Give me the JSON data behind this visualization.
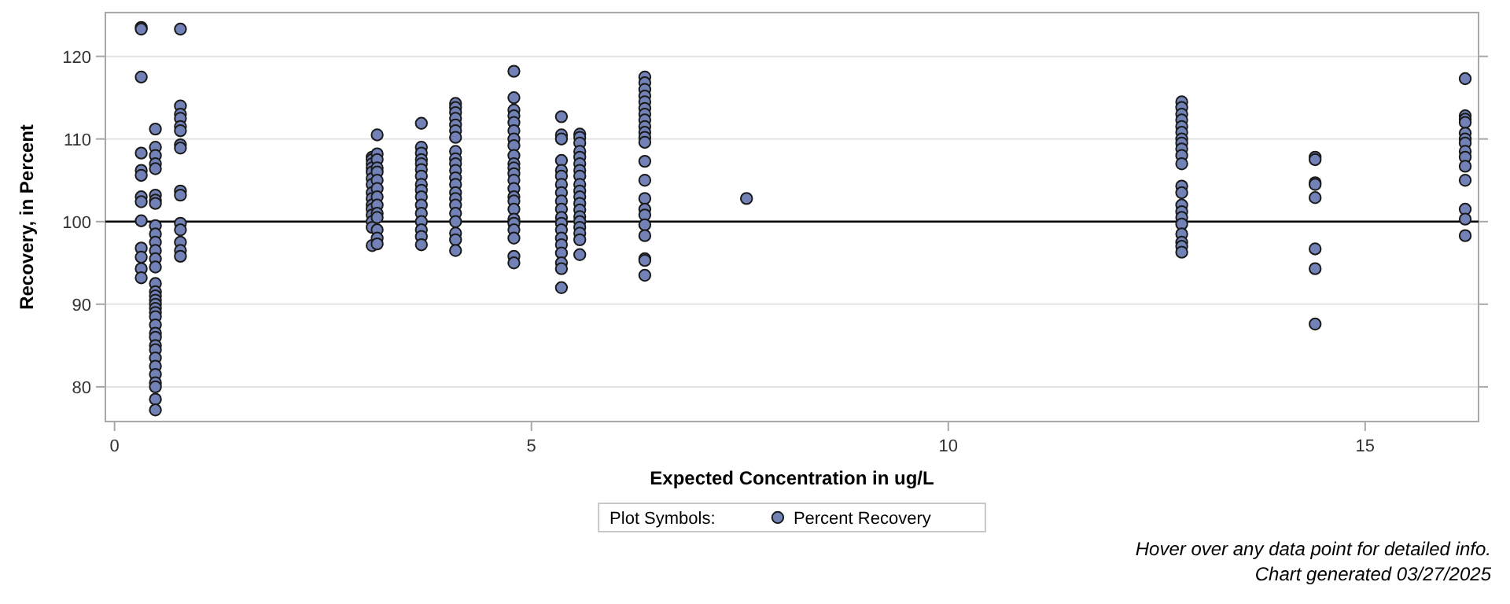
{
  "chart_data": {
    "type": "scatter",
    "xlabel": "Expected Concentration in ug/L",
    "ylabel": "Recovery, in Percent",
    "legend_title": "Plot Symbols:",
    "legend": "bottom",
    "marker": "circle",
    "grid": "y",
    "xlim": [
      -0.11,
      16.36
    ],
    "ylim": [
      75.8,
      125.3
    ],
    "xticks": [
      0,
      5,
      10,
      15
    ],
    "yticks": [
      80,
      90,
      100,
      110,
      120
    ],
    "ref_lines": [
      {
        "axis": "y",
        "value": 100,
        "color": "#000000"
      }
    ],
    "annotations": [
      "Hover over any data point for detailed info.",
      "Chart generated 03/27/2025"
    ],
    "series": [
      {
        "name": "Percent Recovery",
        "color": "#7282b6",
        "x": [
          0.32,
          0.32,
          0.32,
          0.32,
          0.32,
          0.32,
          0.32,
          0.32,
          0.32,
          0.32,
          0.32,
          0.32,
          0.32,
          0.49,
          0.49,
          0.49,
          0.49,
          0.49,
          0.49,
          0.49,
          0.49,
          0.49,
          0.49,
          0.49,
          0.49,
          0.49,
          0.49,
          0.49,
          0.49,
          0.49,
          0.49,
          0.49,
          0.49,
          0.49,
          0.49,
          0.49,
          0.49,
          0.49,
          0.49,
          0.49,
          0.49,
          0.49,
          0.49,
          0.49,
          0.49,
          0.49,
          0.49,
          0.79,
          0.79,
          0.79,
          0.79,
          0.79,
          0.79,
          0.79,
          0.79,
          0.79,
          0.79,
          0.79,
          0.79,
          0.79,
          0.79,
          0.79,
          3.09,
          3.09,
          3.09,
          3.09,
          3.09,
          3.09,
          3.09,
          3.09,
          3.09,
          3.09,
          3.09,
          3.09,
          3.09,
          3.09,
          3.09,
          3.15,
          3.15,
          3.15,
          3.15,
          3.15,
          3.15,
          3.15,
          3.15,
          3.15,
          3.15,
          3.15,
          3.15,
          3.15,
          3.15,
          3.68,
          3.68,
          3.68,
          3.68,
          3.68,
          3.68,
          3.68,
          3.68,
          3.68,
          3.68,
          3.68,
          3.68,
          3.68,
          3.68,
          3.68,
          3.68,
          4.09,
          4.09,
          4.09,
          4.09,
          4.09,
          4.09,
          4.09,
          4.09,
          4.09,
          4.09,
          4.09,
          4.09,
          4.09,
          4.09,
          4.09,
          4.09,
          4.09,
          4.09,
          4.09,
          4.09,
          4.09,
          4.79,
          4.79,
          4.79,
          4.79,
          4.79,
          4.79,
          4.79,
          4.79,
          4.79,
          4.79,
          4.79,
          4.79,
          4.79,
          4.79,
          4.79,
          4.79,
          4.79,
          4.79,
          4.79,
          4.79,
          4.79,
          4.79,
          4.79,
          5.36,
          5.36,
          5.36,
          5.36,
          5.36,
          5.36,
          5.36,
          5.36,
          5.36,
          5.36,
          5.36,
          5.36,
          5.36,
          5.36,
          5.36,
          5.36,
          5.36,
          5.36,
          5.36,
          5.58,
          5.58,
          5.58,
          5.58,
          5.58,
          5.58,
          5.58,
          5.58,
          5.58,
          5.58,
          5.58,
          5.58,
          5.58,
          5.58,
          5.58,
          5.58,
          5.58,
          5.58,
          5.58,
          6.36,
          6.36,
          6.36,
          6.36,
          6.36,
          6.36,
          6.36,
          6.36,
          6.36,
          6.36,
          6.36,
          6.36,
          6.36,
          6.36,
          6.36,
          6.36,
          6.36,
          6.36,
          6.36,
          6.36,
          6.36,
          6.36,
          7.58,
          12.8,
          12.8,
          12.8,
          12.8,
          12.8,
          12.8,
          12.8,
          12.8,
          12.8,
          12.8,
          12.8,
          12.8,
          12.8,
          12.8,
          12.8,
          12.8,
          12.8,
          12.8,
          12.8,
          12.8,
          12.8,
          14.4,
          14.4,
          14.4,
          14.4,
          14.4,
          14.4,
          14.4,
          14.4,
          16.2,
          16.2,
          16.2,
          16.2,
          16.2,
          16.2,
          16.2,
          16.2,
          16.2,
          16.2,
          16.2,
          16.2,
          16.2,
          16.2
        ],
        "values": [
          123.5,
          123.3,
          117.5,
          108.3,
          106.2,
          105.6,
          103.0,
          102.4,
          100.1,
          96.8,
          95.7,
          94.3,
          93.2,
          111.2,
          109.0,
          108.0,
          107.0,
          106.4,
          103.2,
          102.6,
          102.2,
          99.5,
          98.5,
          97.5,
          96.5,
          95.5,
          94.5,
          92.5,
          91.5,
          91.0,
          90.5,
          90.0,
          89.5,
          89.0,
          88.5,
          87.5,
          86.5,
          86.0,
          85.0,
          84.5,
          83.5,
          82.5,
          81.5,
          80.5,
          80.0,
          78.5,
          77.2,
          123.3,
          114.0,
          113.0,
          112.5,
          111.5,
          111.0,
          109.3,
          108.9,
          103.7,
          103.2,
          99.8,
          99.0,
          97.5,
          96.5,
          95.8,
          107.8,
          107.5,
          107.0,
          106.5,
          106.0,
          105.2,
          104.5,
          103.5,
          102.8,
          102.0,
          101.5,
          100.8,
          100.0,
          99.3,
          97.1,
          110.5,
          108.2,
          107.5,
          106.5,
          106.0,
          105.0,
          104.0,
          103.0,
          102.0,
          101.0,
          100.5,
          99.0,
          98.0,
          97.3,
          111.9,
          109.0,
          108.3,
          107.5,
          107.0,
          106.3,
          105.5,
          104.5,
          103.8,
          103.0,
          102.0,
          101.0,
          100.0,
          99.0,
          98.2,
          97.2,
          114.3,
          113.8,
          113.2,
          112.5,
          111.7,
          111.0,
          110.2,
          108.5,
          107.6,
          107.0,
          106.2,
          105.3,
          104.5,
          103.5,
          102.8,
          102.0,
          101.0,
          100.0,
          98.6,
          97.8,
          96.5,
          118.2,
          115.0,
          113.5,
          112.8,
          112.0,
          111.0,
          110.0,
          109.2,
          108.0,
          107.0,
          106.5,
          105.8,
          105.0,
          104.0,
          103.0,
          102.5,
          101.5,
          100.3,
          99.8,
          99.0,
          98.0,
          95.8,
          95.0,
          112.7,
          110.5,
          110.0,
          107.4,
          106.2,
          105.5,
          104.5,
          103.5,
          102.5,
          101.5,
          100.5,
          99.8,
          99.0,
          98.0,
          97.2,
          96.2,
          95.0,
          94.3,
          92.0,
          110.6,
          110.2,
          109.5,
          108.5,
          107.8,
          107.0,
          106.2,
          105.5,
          104.5,
          103.7,
          103.0,
          102.2,
          101.4,
          100.6,
          100.0,
          99.3,
          98.6,
          97.8,
          96.0,
          117.5,
          116.8,
          116.0,
          115.2,
          114.5,
          113.7,
          113.0,
          112.3,
          111.5,
          110.8,
          110.2,
          109.6,
          107.3,
          105.0,
          102.8,
          101.5,
          100.8,
          99.6,
          98.3,
          95.5,
          95.3,
          93.5,
          102.8,
          114.5,
          113.8,
          113.0,
          112.3,
          111.5,
          110.8,
          110.0,
          109.5,
          108.8,
          108.0,
          107.0,
          104.3,
          103.5,
          102.0,
          101.2,
          100.5,
          99.7,
          98.5,
          97.5,
          97.0,
          96.3,
          107.8,
          107.5,
          104.7,
          104.5,
          102.9,
          96.7,
          94.3,
          87.6,
          117.3,
          112.8,
          112.4,
          112.0,
          110.7,
          110.0,
          109.5,
          108.5,
          107.8,
          106.7,
          105.0,
          101.5,
          100.3,
          98.3
        ]
      }
    ]
  }
}
